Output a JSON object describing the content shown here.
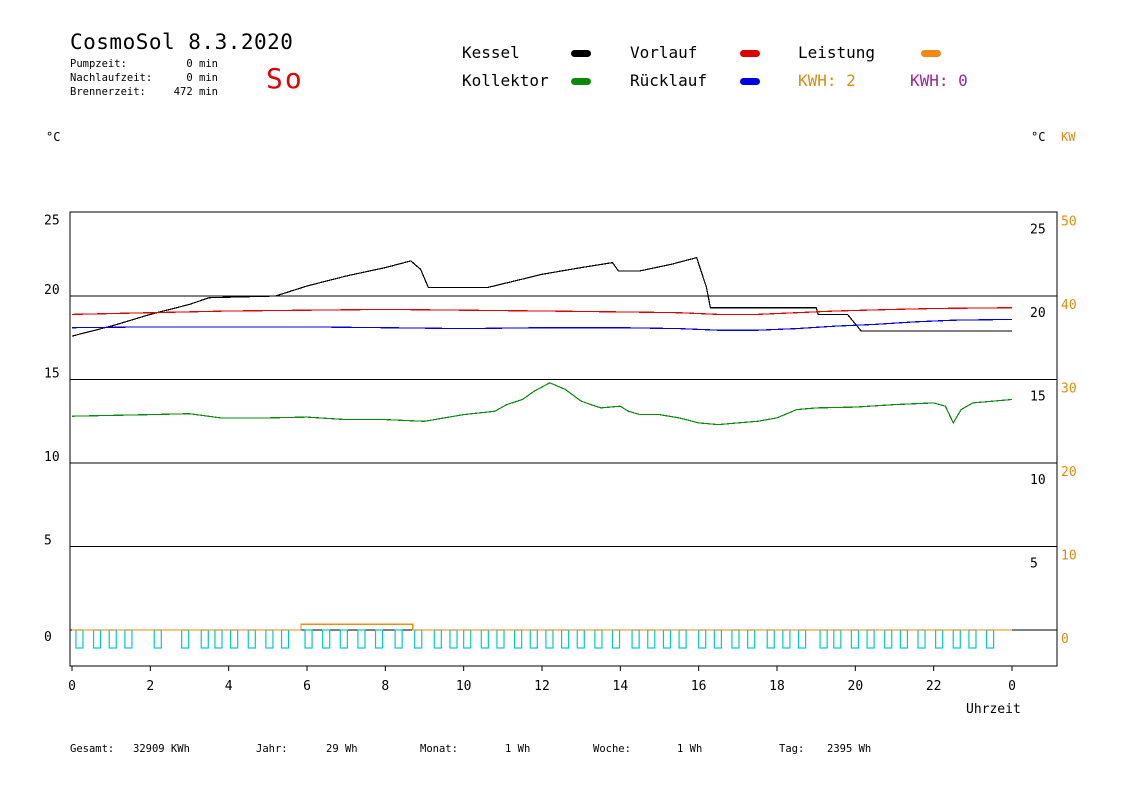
{
  "header": {
    "title": "CosmoSol 8.3.2020",
    "day": "So",
    "stats": [
      {
        "label": "Pumpzeit:",
        "value": "0 min"
      },
      {
        "label": "Nachlaufzeit:",
        "value": "0 min"
      },
      {
        "label": "Brennerzeit:",
        "value": "472 min"
      }
    ]
  },
  "legend": {
    "kessel": {
      "label": "Kessel",
      "color": "#000000"
    },
    "vorlauf": {
      "label": "Vorlauf",
      "color": "#e00000"
    },
    "leistung": {
      "label": "Leistung",
      "color": "#f08a10"
    },
    "kollektor": {
      "label": "Kollektor",
      "color": "#0a8a0a"
    },
    "ruecklauf": {
      "label": "Rücklauf",
      "color": "#0000e0"
    },
    "kwh_orange": "KWH: 2",
    "kwh_purple": "KWH: 0",
    "kwh_orange_color": "#e08a10",
    "kwh_purple_color": "#a020a0"
  },
  "axes": {
    "left_unit": "°C",
    "right_unit_c": "°C",
    "right_unit_kw": "KW",
    "xlabel": "Uhrzeit"
  },
  "footer": [
    {
      "label": "Gesamt:",
      "value": "32909 KWh"
    },
    {
      "label": "Jahr:",
      "value": "29 Wh"
    },
    {
      "label": "Monat:",
      "value": "1 Wh"
    },
    {
      "label": "Woche:",
      "value": "1 Wh"
    },
    {
      "label": "Tag:",
      "value": "2395 Wh"
    }
  ],
  "chart_data": {
    "type": "line",
    "x_ticks": [
      "0",
      "2",
      "4",
      "6",
      "8",
      "10",
      "12",
      "14",
      "16",
      "18",
      "20",
      "22",
      "0"
    ],
    "xlim": [
      0,
      24
    ],
    "ylim": [
      -2,
      25
    ],
    "y_ticks_left": [
      "25",
      "20",
      "15",
      "10",
      "5",
      "0"
    ],
    "y_ticks_right_c": [
      "25",
      "20",
      "15",
      "10",
      "5"
    ],
    "y_ticks_right_kw": [
      "50",
      "40",
      "30",
      "20",
      "10",
      "0"
    ],
    "grid": "horizontal",
    "series": [
      {
        "name": "Kessel",
        "color": "#000000",
        "points": [
          [
            0,
            17.6
          ],
          [
            1,
            18.2
          ],
          [
            2,
            18.9
          ],
          [
            3,
            19.5
          ],
          [
            3.5,
            19.9
          ],
          [
            5.2,
            20
          ],
          [
            6,
            20.6
          ],
          [
            7,
            21.2
          ],
          [
            8,
            21.7
          ],
          [
            8.65,
            22.1
          ],
          [
            8.9,
            21.6
          ],
          [
            9.1,
            20.5
          ],
          [
            10.6,
            20.5
          ],
          [
            11.3,
            20.9
          ],
          [
            12,
            21.3
          ],
          [
            13,
            21.7
          ],
          [
            13.8,
            22
          ],
          [
            13.95,
            21.5
          ],
          [
            14.5,
            21.5
          ],
          [
            15.3,
            21.9
          ],
          [
            15.95,
            22.3
          ],
          [
            16.2,
            20.5
          ],
          [
            16.3,
            19.3
          ],
          [
            19,
            19.3
          ],
          [
            19.05,
            18.9
          ],
          [
            19.8,
            18.9
          ],
          [
            20.15,
            17.9
          ],
          [
            24,
            17.9
          ]
        ]
      },
      {
        "name": "Vorlauf",
        "color": "#e00000",
        "points": [
          [
            0,
            18.9
          ],
          [
            2,
            19
          ],
          [
            4,
            19.1
          ],
          [
            6,
            19.15
          ],
          [
            8,
            19.2
          ],
          [
            10,
            19.15
          ],
          [
            12,
            19.1
          ],
          [
            14,
            19.05
          ],
          [
            15.5,
            19
          ],
          [
            16.5,
            18.9
          ],
          [
            17.5,
            18.9
          ],
          [
            18.5,
            19
          ],
          [
            19.5,
            19.1
          ],
          [
            21,
            19.2
          ],
          [
            22,
            19.25
          ],
          [
            24,
            19.3
          ]
        ]
      },
      {
        "name": "Rücklauf",
        "color": "#0000e0",
        "points": [
          [
            0,
            18.1
          ],
          [
            2,
            18.15
          ],
          [
            4,
            18.15
          ],
          [
            6,
            18.15
          ],
          [
            8,
            18.1
          ],
          [
            10,
            18.05
          ],
          [
            12,
            18.1
          ],
          [
            14,
            18.1
          ],
          [
            15.5,
            18.05
          ],
          [
            16.5,
            17.95
          ],
          [
            17.5,
            17.95
          ],
          [
            18.5,
            18.05
          ],
          [
            19.5,
            18.2
          ],
          [
            20.5,
            18.3
          ],
          [
            21.5,
            18.45
          ],
          [
            22.5,
            18.55
          ],
          [
            24,
            18.6
          ]
        ]
      },
      {
        "name": "Kollektor",
        "color": "#0a8a0a",
        "points": [
          [
            0,
            12.8
          ],
          [
            1,
            12.85
          ],
          [
            2,
            12.9
          ],
          [
            3,
            12.95
          ],
          [
            3.8,
            12.7
          ],
          [
            5,
            12.7
          ],
          [
            6,
            12.75
          ],
          [
            7,
            12.6
          ],
          [
            8,
            12.6
          ],
          [
            9,
            12.5
          ],
          [
            10,
            12.9
          ],
          [
            10.8,
            13.1
          ],
          [
            11.1,
            13.5
          ],
          [
            11.5,
            13.8
          ],
          [
            11.8,
            14.3
          ],
          [
            12.2,
            14.8
          ],
          [
            12.6,
            14.4
          ],
          [
            13,
            13.7
          ],
          [
            13.5,
            13.3
          ],
          [
            14,
            13.4
          ],
          [
            14.2,
            13.1
          ],
          [
            14.5,
            12.9
          ],
          [
            15,
            12.9
          ],
          [
            15.5,
            12.7
          ],
          [
            16,
            12.4
          ],
          [
            16.5,
            12.3
          ],
          [
            17,
            12.4
          ],
          [
            17.5,
            12.5
          ],
          [
            18,
            12.7
          ],
          [
            18.5,
            13.2
          ],
          [
            19,
            13.3
          ],
          [
            20,
            13.35
          ],
          [
            21,
            13.5
          ],
          [
            22,
            13.6
          ],
          [
            22.3,
            13.4
          ],
          [
            22.5,
            12.4
          ],
          [
            22.7,
            13.2
          ],
          [
            23,
            13.6
          ],
          [
            24,
            13.8
          ]
        ]
      },
      {
        "name": "Leistung",
        "color": "#f08a10",
        "points": [
          [
            0,
            0
          ],
          [
            5.85,
            0
          ],
          [
            5.85,
            0.35
          ],
          [
            8.7,
            0.35
          ],
          [
            8.7,
            0
          ],
          [
            24,
            0
          ]
        ]
      }
    ],
    "pump_pulses": {
      "color": "#00c8d0",
      "start_hours": [
        0.1,
        0.55,
        0.95,
        1.35,
        2.1,
        2.8,
        3.3,
        3.65,
        4.05,
        4.5,
        4.95,
        5.35,
        5.95,
        6.4,
        6.85,
        7.3,
        7.75,
        8.25,
        8.75,
        9.25,
        9.65,
        10,
        10.45,
        10.85,
        11.3,
        11.7,
        12.1,
        12.5,
        12.9,
        13.35,
        13.8,
        14.3,
        14.7,
        15.1,
        15.5,
        16,
        16.4,
        16.85,
        17.25,
        17.75,
        18.15,
        18.55,
        19.1,
        19.45,
        19.9,
        20.3,
        20.75,
        21.15,
        21.6,
        22.05,
        22.5,
        22.9,
        23.35
      ],
      "width_h": 0.18
    }
  }
}
